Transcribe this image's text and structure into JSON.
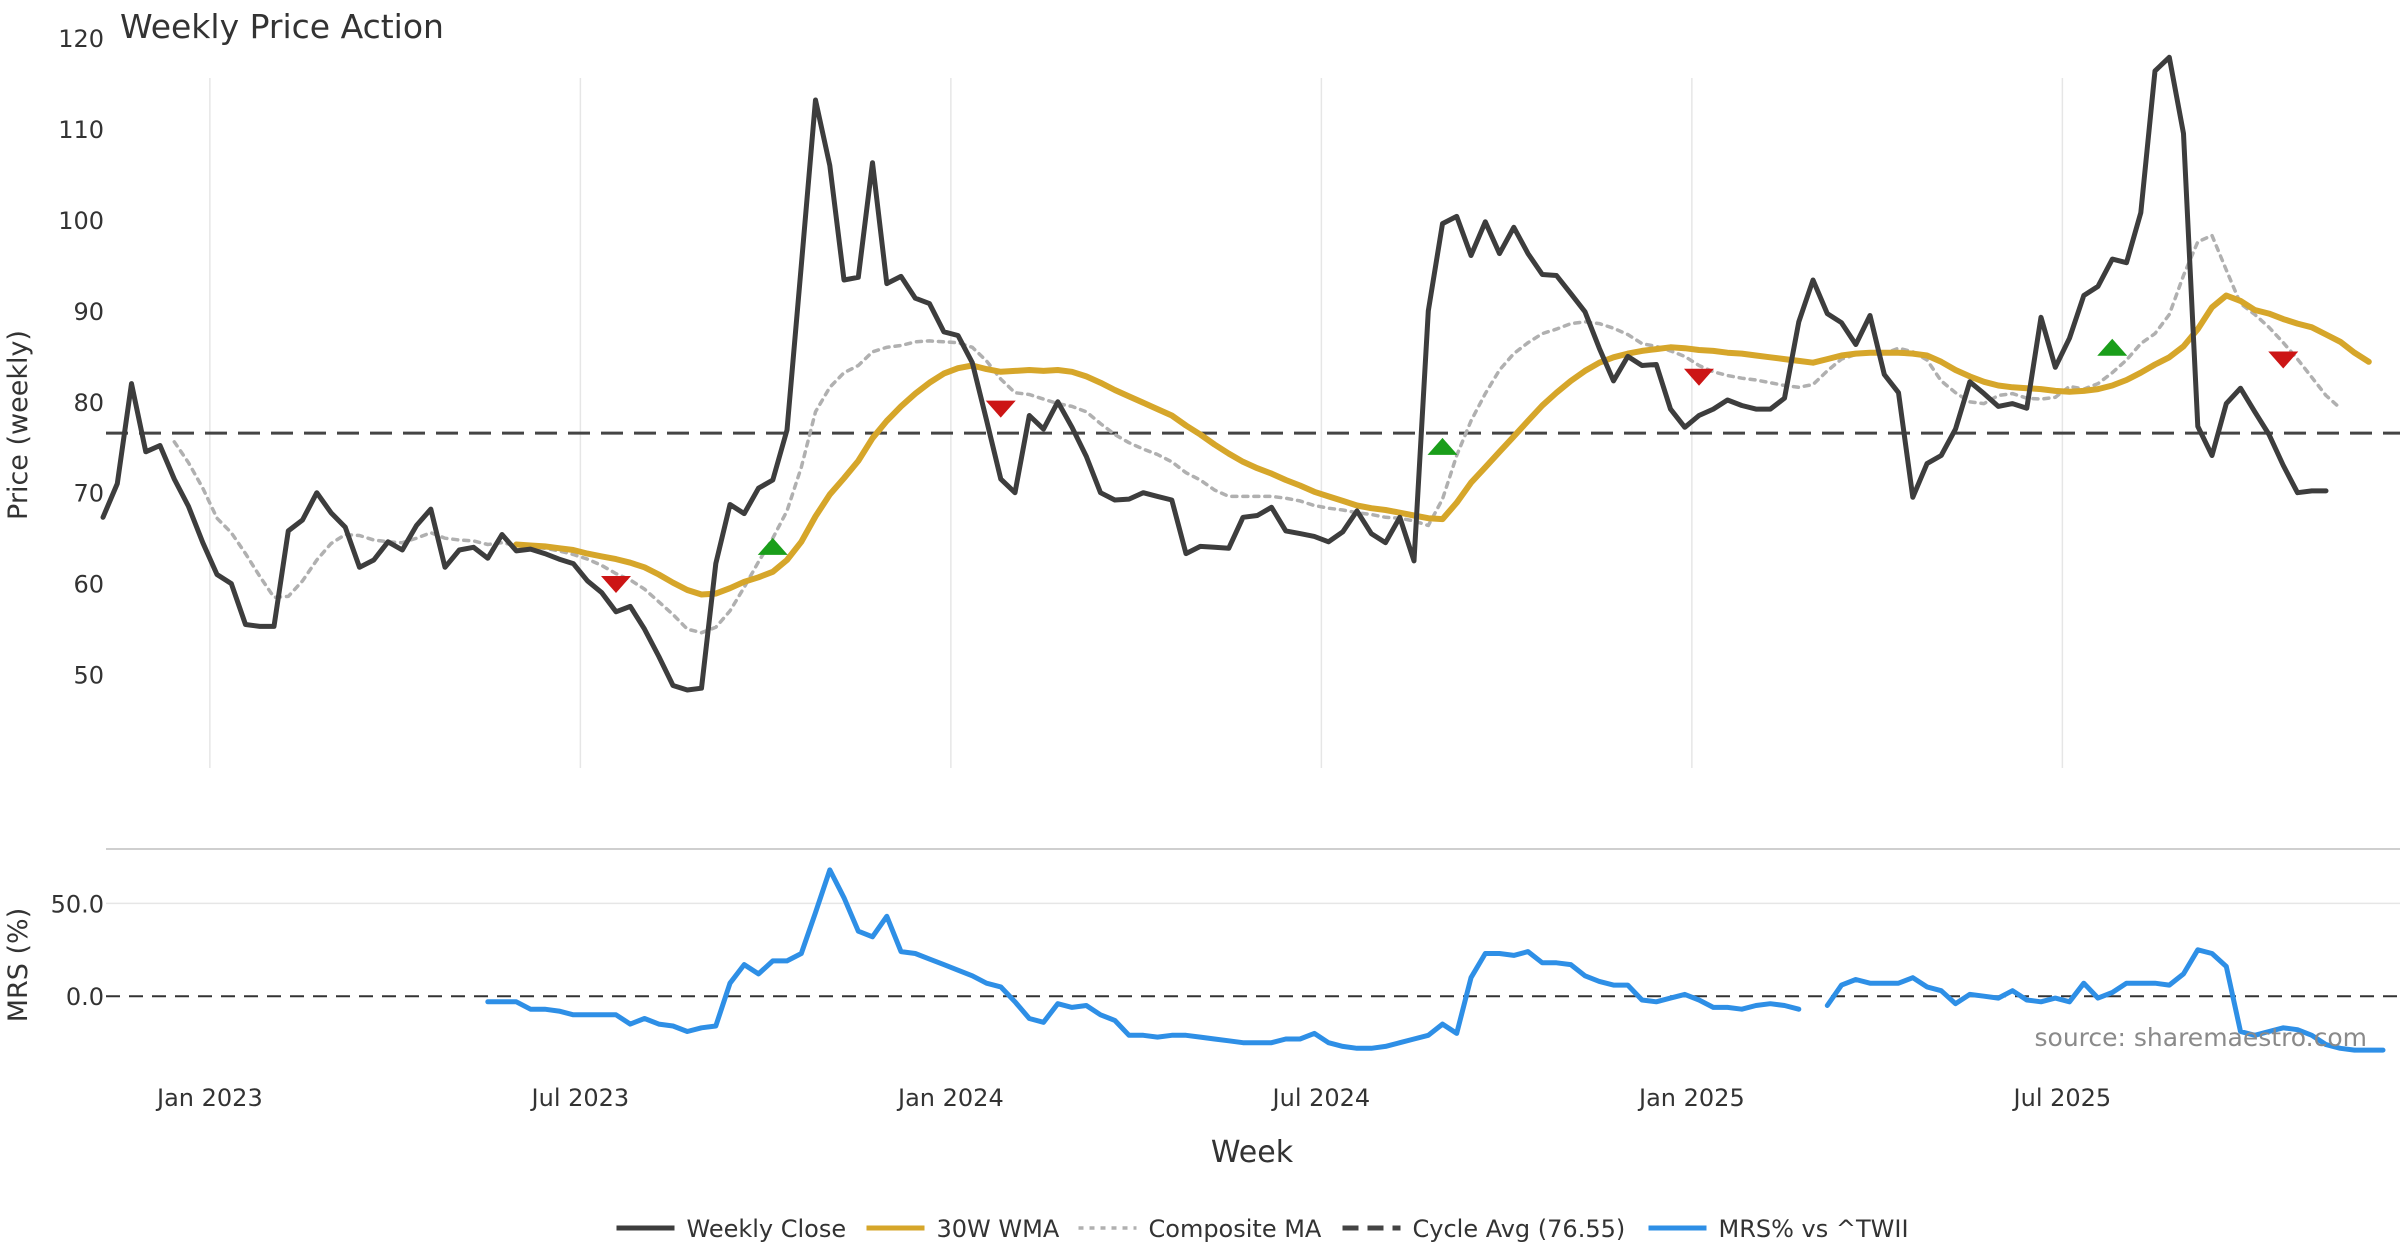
{
  "chart_data": {
    "title": "Weekly Price Action",
    "source_note": "source: sharemaestro.com",
    "xlabel": "Week",
    "x_ticks": [
      "Jan 2023",
      "Jul 2023",
      "Jan 2024",
      "Jul 2024",
      "Jan 2025",
      "Jul 2025"
    ],
    "price_panel": {
      "type": "line",
      "ylabel": "Price (weekly)",
      "ylim": [
        45,
        122
      ],
      "y_ticks": [
        50,
        60,
        70,
        80,
        90,
        100,
        110,
        120
      ],
      "cycle_avg": 76.55,
      "series": [
        {
          "name": "Weekly Close",
          "color": "#3d3d3d",
          "values": [
            67.3,
            71,
            82,
            74.5,
            75.2,
            71.5,
            68.5,
            64.5,
            61,
            60,
            55.5,
            55.3,
            55.3,
            65.8,
            67,
            70,
            67.8,
            66.2,
            61.8,
            62.6,
            64.6,
            63.7,
            66.4,
            68.2,
            61.8,
            63.7,
            64,
            62.8,
            65.4,
            63.6,
            63.8,
            63.3,
            62.7,
            62.2,
            60.3,
            59,
            56.9,
            57.5,
            55,
            52,
            48.8,
            48.3,
            48.5,
            62.2,
            68.7,
            67.7,
            70.5,
            71.4,
            76.9,
            95,
            113.2,
            106,
            93.4,
            93.7,
            106.3,
            93,
            93.8,
            91.4,
            90.8,
            87.7,
            87.3,
            84.3,
            78,
            71.5,
            70,
            78.5,
            77,
            80,
            77.2,
            74,
            70,
            69.2,
            69.3,
            70,
            69.6,
            69.2,
            63.3,
            64.1,
            64,
            63.9,
            67.3,
            67.5,
            68.4,
            65.8,
            65.5,
            65.2,
            64.6,
            65.7,
            68,
            65.5,
            64.5,
            67.3,
            62.5,
            90,
            99.6,
            100.4,
            96.1,
            99.8,
            96.3,
            99.2,
            96.3,
            94,
            93.9,
            91.9,
            89.9,
            85.9,
            82.3,
            85,
            84,
            84.1,
            79.2,
            77.2,
            78.5,
            79.2,
            80.2,
            79.6,
            79.2,
            79.2,
            80.4,
            88.8,
            93.4,
            89.7,
            88.7,
            86.3,
            89.5,
            83,
            81,
            69.5,
            73.2,
            74.1,
            77,
            82.2,
            80.9,
            79.5,
            79.8,
            79.3,
            89.3,
            83.8,
            87,
            91.7,
            92.7,
            95.7,
            95.3,
            100.8,
            116.4,
            117.9,
            109.5,
            77.3,
            74.1,
            79.8,
            81.5,
            78.9,
            76.4,
            73,
            70,
            70.2,
            70.2
          ]
        },
        {
          "name": "30W WMA",
          "color": "#d6a62a",
          "values": [
            null,
            null,
            null,
            null,
            null,
            null,
            null,
            null,
            null,
            null,
            null,
            null,
            null,
            null,
            null,
            null,
            null,
            null,
            null,
            null,
            null,
            null,
            null,
            null,
            null,
            null,
            null,
            null,
            null,
            64.3,
            64.2,
            64.1,
            63.9,
            63.7,
            63.3,
            63,
            62.7,
            62.3,
            61.8,
            61,
            60.1,
            59.3,
            58.8,
            58.9,
            59.5,
            60.2,
            60.7,
            61.3,
            62.6,
            64.6,
            67.4,
            69.8,
            71.6,
            73.5,
            76,
            77.9,
            79.5,
            80.9,
            82.1,
            83.1,
            83.7,
            84,
            83.6,
            83.3,
            83.4,
            83.5,
            83.4,
            83.5,
            83.3,
            82.8,
            82.1,
            81.3,
            80.6,
            79.9,
            79.2,
            78.5,
            77.4,
            76.4,
            75.3,
            74.3,
            73.4,
            72.7,
            72.1,
            71.4,
            70.8,
            70.1,
            69.6,
            69.1,
            68.6,
            68.3,
            68.1,
            67.8,
            67.5,
            67.2,
            67.1,
            68.9,
            71.1,
            72.8,
            74.5,
            76.2,
            77.9,
            79.6,
            81,
            82.3,
            83.4,
            84.3,
            84.9,
            85.3,
            85.6,
            85.8,
            86,
            85.9,
            85.7,
            85.6,
            85.4,
            85.3,
            85.1,
            84.9,
            84.7,
            84.5,
            84.3,
            84.7,
            85.1,
            85.3,
            85.4,
            85.4,
            85.4,
            85.3,
            85.1,
            84.4,
            83.5,
            82.8,
            82.2,
            81.8,
            81.6,
            81.5,
            81.4,
            81.2,
            81.1,
            81.2,
            81.4,
            81.8,
            82.4,
            83.2,
            84.1,
            84.9,
            86.1,
            88,
            90.4,
            91.7,
            91.1,
            90.1,
            89.7,
            89.1,
            88.6,
            88.2,
            87.4,
            86.6,
            85.4,
            84.4
          ]
        },
        {
          "name": "Composite MA",
          "color": "#b0b0b0",
          "values": [
            null,
            null,
            null,
            null,
            null,
            75.6,
            73.3,
            70.5,
            67.2,
            65.6,
            63.3,
            60.8,
            58.5,
            58.6,
            60.3,
            62.6,
            64.4,
            65.4,
            65.3,
            64.8,
            64.6,
            64.5,
            65,
            65.6,
            65,
            64.8,
            64.7,
            64.3,
            64.5,
            64.2,
            64,
            63.9,
            63.6,
            63.2,
            62.7,
            62,
            61.1,
            60.4,
            59.4,
            58,
            56.6,
            55,
            54.6,
            55.2,
            57,
            59.6,
            62.4,
            65,
            68,
            72.8,
            78.9,
            81.6,
            83.2,
            84,
            85.5,
            86,
            86.2,
            86.6,
            86.7,
            86.6,
            86.5,
            86,
            84.5,
            82.5,
            81,
            80.8,
            80.3,
            79.8,
            79.5,
            78.9,
            77.6,
            76.4,
            75.5,
            74.8,
            74.2,
            73.4,
            72.2,
            71.4,
            70.3,
            69.6,
            69.6,
            69.6,
            69.6,
            69.4,
            69.1,
            68.6,
            68.3,
            68.1,
            67.8,
            67.6,
            67.3,
            67.2,
            66.9,
            66.4,
            69.3,
            74.1,
            77.9,
            80.9,
            83.5,
            85.3,
            86.5,
            87.5,
            88,
            88.6,
            88.8,
            88.6,
            88.1,
            87.4,
            86.4,
            86.1,
            85.6,
            85,
            84,
            83.3,
            82.9,
            82.6,
            82.4,
            82.1,
            81.8,
            81.6,
            81.9,
            83.4,
            84.7,
            85.2,
            85.3,
            85.3,
            85.9,
            85.5,
            84.6,
            82.3,
            81,
            80,
            79.8,
            80.7,
            80.9,
            80.4,
            80.3,
            80.5,
            81.7,
            81.4,
            82,
            83.2,
            84.6,
            86.4,
            87.5,
            89.6,
            93.9,
            97.6,
            98.3,
            94.5,
            90.8,
            89.6,
            88.2,
            86.5,
            84.7,
            82.7,
            80.7,
            79.3
          ]
        }
      ],
      "signals": [
        {
          "type": "sell",
          "index": 36,
          "value": 59.9,
          "color": "#cc1515"
        },
        {
          "type": "buy",
          "index": 47,
          "value": 64.1,
          "color": "#1a9e1a"
        },
        {
          "type": "sell",
          "index": 63,
          "value": 79.2,
          "color": "#cc1515"
        },
        {
          "type": "buy",
          "index": 94,
          "value": 75.1,
          "color": "#1a9e1a"
        },
        {
          "type": "sell",
          "index": 112,
          "value": 82.7,
          "color": "#cc1515"
        },
        {
          "type": "buy",
          "index": 141,
          "value": 86,
          "color": "#1a9e1a"
        },
        {
          "type": "sell",
          "index": 153,
          "value": 84.6,
          "color": "#cc1515"
        }
      ]
    },
    "mrs_panel": {
      "type": "line",
      "ylabel": "MRS (%)",
      "ylim": [
        -37,
        76
      ],
      "y_ticks": [
        0.0,
        50.0
      ],
      "y_tick_labels": [
        "0.0",
        "50.0"
      ],
      "series": [
        {
          "name": "MRS% vs ^TWII",
          "color": "#2e8fe6",
          "values": [
            null,
            null,
            null,
            null,
            null,
            null,
            null,
            null,
            null,
            null,
            null,
            null,
            null,
            null,
            null,
            null,
            null,
            null,
            null,
            null,
            null,
            null,
            null,
            null,
            null,
            null,
            null,
            -3,
            -3,
            -3,
            -7,
            -7,
            -8,
            -10,
            -10,
            -10,
            -10,
            -15,
            -12,
            -15,
            -16,
            -19,
            -17,
            -16,
            7,
            17,
            12,
            19,
            19,
            23,
            45,
            68,
            53,
            35,
            32,
            43,
            24,
            23,
            20,
            17,
            14,
            11,
            7,
            5,
            -3,
            -12,
            -14,
            -4,
            -6,
            -5,
            -10,
            -13,
            -21,
            -21,
            -22,
            -21,
            -21,
            -22,
            -23,
            -24,
            -25,
            -25,
            -25,
            -23,
            -23,
            -20,
            -25,
            -27,
            -28,
            -28,
            -27,
            -25,
            -23,
            -21,
            -15,
            -20,
            10,
            23,
            23,
            22,
            24,
            18,
            18,
            17,
            11,
            8,
            6,
            6,
            -2,
            -3,
            -1,
            1,
            -2,
            -6,
            -6,
            -7,
            -5,
            -4,
            -5,
            -7,
            null,
            -5,
            6,
            9,
            7,
            7,
            7,
            10,
            5,
            3,
            -4,
            1,
            0,
            -1,
            3,
            -2,
            -3,
            -1,
            -3,
            7,
            -1,
            2,
            7,
            7,
            7,
            6,
            12,
            25,
            23,
            16,
            -19,
            -21,
            -19,
            -17,
            -18,
            -21,
            -26,
            -28,
            -29,
            -29,
            -29
          ]
        }
      ],
      "zero_line": 0.0
    },
    "legend": [
      {
        "label": "Weekly Close",
        "style": "solid",
        "color": "#3d3d3d"
      },
      {
        "label": "30W WMA",
        "style": "solid",
        "color": "#d6a62a"
      },
      {
        "label": "Composite MA",
        "style": "dotted",
        "color": "#b0b0b0"
      },
      {
        "label": "Cycle Avg (76.55)",
        "style": "dashed",
        "color": "#444444"
      },
      {
        "label": "MRS% vs ^TWII",
        "style": "solid",
        "color": "#2e8fe6"
      }
    ]
  }
}
